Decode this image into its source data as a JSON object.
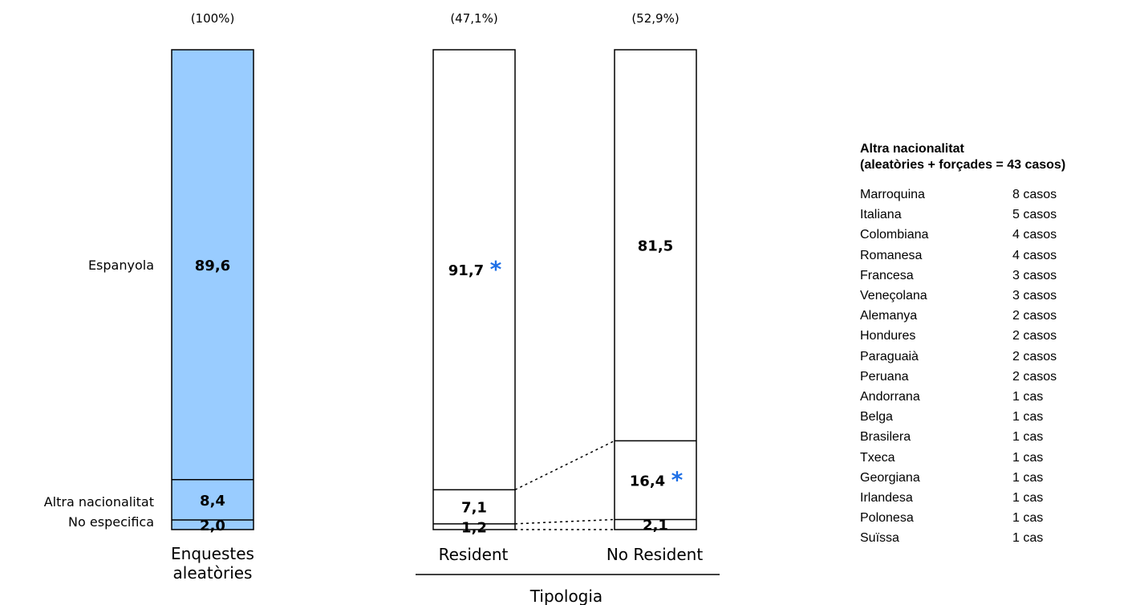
{
  "chart_data": {
    "type": "stacked-bar",
    "categories": [
      "Enquestes aleatòries",
      "Resident",
      "No Resident"
    ],
    "bar_shares": [
      "(100%)",
      "(47,1%)",
      "(52,9%)"
    ],
    "group_label": "Tipologia",
    "series": [
      {
        "name": "No especifica",
        "values": [
          2.0,
          1.2,
          2.1
        ],
        "labels": [
          "2,0",
          "1,2",
          "2,1"
        ]
      },
      {
        "name": "Altra nacionalitat",
        "values": [
          8.4,
          7.1,
          16.4
        ],
        "labels": [
          "8,4",
          "7,1",
          "16,4"
        ]
      },
      {
        "name": "Espanyola",
        "values": [
          89.6,
          91.7,
          81.5
        ],
        "labels": [
          "89,6",
          "91,7",
          "81,5"
        ]
      }
    ],
    "significance_marker": "*",
    "marked": [
      {
        "bar": 1,
        "series": "Espanyola"
      },
      {
        "bar": 2,
        "series": "Altra nacionalitat"
      }
    ],
    "ylim": [
      0,
      100
    ],
    "colors": {
      "first_bar_fill": "#99ccff",
      "other_bar_fill": "#ffffff",
      "marker": "#1e6fe6",
      "stroke": "#000000"
    }
  },
  "side_table": {
    "title_line1": "Altra nacionalitat",
    "title_line2": "(aleatòries + forçades = 43 casos)",
    "rows": [
      {
        "nationality": "Marroquina",
        "cases": "8 casos"
      },
      {
        "nationality": "Italiana",
        "cases": "5 casos"
      },
      {
        "nationality": "Colombiana",
        "cases": "4 casos"
      },
      {
        "nationality": "Romanesa",
        "cases": "4 casos"
      },
      {
        "nationality": "Francesa",
        "cases": "3 casos"
      },
      {
        "nationality": "Veneçolana",
        "cases": "3 casos"
      },
      {
        "nationality": "Alemanya",
        "cases": "2 casos"
      },
      {
        "nationality": "Hondures",
        "cases": "2 casos"
      },
      {
        "nationality": "Paraguaià",
        "cases": "2 casos"
      },
      {
        "nationality": "Peruana",
        "cases": "2 casos"
      },
      {
        "nationality": "Andorrana",
        "cases": "1 cas"
      },
      {
        "nationality": "Belga",
        "cases": "1 cas"
      },
      {
        "nationality": "Brasilera",
        "cases": "1 cas"
      },
      {
        "nationality": "Txeca",
        "cases": "1 cas"
      },
      {
        "nationality": "Georgiana",
        "cases": "1 cas"
      },
      {
        "nationality": "Irlandesa",
        "cases": "1 cas"
      },
      {
        "nationality": "Polonesa",
        "cases": "1 cas"
      },
      {
        "nationality": "Suïssa",
        "cases": "1 cas"
      }
    ]
  }
}
